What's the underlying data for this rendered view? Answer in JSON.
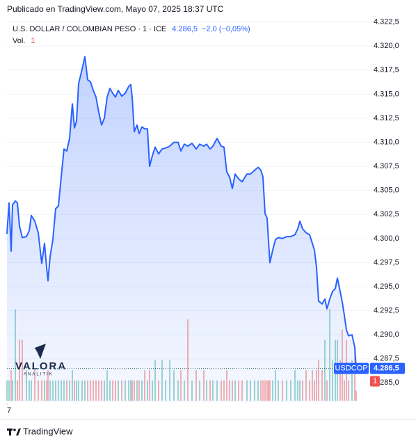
{
  "header": "Publicado en TradingView.com, Mayo 07, 2025 18:37 UTC",
  "footer": "TradingView",
  "watermark": {
    "title": "VALORA",
    "subtitle": "ANALITIK"
  },
  "chart_data": {
    "type": "area",
    "title": "U.S. DOLLAR / COLOMBIAN PESO · 1 · ICE",
    "last_label": "4.286,5",
    "change_label": "−2,0 (−0,05%)",
    "grid": true,
    "x": [
      0,
      3,
      6,
      8,
      12,
      15,
      18,
      22,
      28,
      32,
      35,
      40,
      45,
      50,
      54,
      57,
      59,
      62,
      66,
      70,
      74,
      78,
      82,
      86,
      90,
      94,
      97,
      100,
      103,
      108,
      112,
      116,
      120,
      124,
      128,
      132,
      136,
      140,
      144,
      148,
      152,
      156,
      160,
      165,
      170,
      175,
      178,
      180,
      183,
      187,
      190,
      194,
      198,
      202,
      205,
      209,
      213,
      218,
      223,
      228,
      234,
      240,
      246,
      250,
      255,
      260,
      266,
      272,
      277,
      283,
      287,
      292,
      296,
      302,
      308,
      312,
      316,
      320,
      324,
      328,
      333,
      338,
      345,
      350,
      356,
      361,
      365,
      368,
      371,
      374,
      376,
      378,
      382,
      386,
      390,
      396,
      402,
      408,
      414,
      418,
      421,
      425,
      430,
      435,
      439,
      442,
      445,
      448,
      453,
      457,
      460,
      464,
      468,
      472,
      475,
      479,
      482,
      485,
      488,
      491,
      496,
      500,
      502
    ],
    "xlim": [
      0,
      520
    ],
    "xticks": [
      {
        "value": 0,
        "label": "7"
      }
    ],
    "ylim": [
      4283.0,
      4323.2
    ],
    "yticks": [
      {
        "value": 4285.0,
        "label": "4.285,0"
      },
      {
        "value": 4287.5,
        "label": "4.287,5"
      },
      {
        "value": 4290.0,
        "label": "4.290,0"
      },
      {
        "value": 4292.5,
        "label": "4.292,5"
      },
      {
        "value": 4295.0,
        "label": "4.295,0"
      },
      {
        "value": 4297.5,
        "label": "4.297,5"
      },
      {
        "value": 4300.0,
        "label": "4.300,0"
      },
      {
        "value": 4302.5,
        "label": "4.302,5"
      },
      {
        "value": 4305.0,
        "label": "4.305,0"
      },
      {
        "value": 4307.5,
        "label": "4.307,5"
      },
      {
        "value": 4310.0,
        "label": "4.310,0"
      },
      {
        "value": 4312.5,
        "label": "4.312,5"
      },
      {
        "value": 4315.0,
        "label": "4.315,0"
      },
      {
        "value": 4317.5,
        "label": "4.317,5"
      },
      {
        "value": 4320.0,
        "label": "4.320,0"
      },
      {
        "value": 4322.5,
        "label": "4.322,5"
      }
    ],
    "y2lim": [
      0,
      10
    ],
    "series": [
      {
        "name": "USDCOP",
        "color": "#2962ff",
        "values": [
          4300.5,
          4303.7,
          4298.7,
          4303.5,
          4303.9,
          4303.7,
          4301.3,
          4300.1,
          4300.2,
          4300.8,
          4302.4,
          4301.8,
          4300.6,
          4297.4,
          4299.5,
          4297.0,
          4295.6,
          4298.1,
          4299.9,
          4303.1,
          4303.4,
          4306.4,
          4309.3,
          4309.1,
          4310.4,
          4314.0,
          4311.5,
          4312.2,
          4316.1,
          4317.6,
          4318.9,
          4316.5,
          4316.3,
          4315.4,
          4314.7,
          4313.1,
          4311.8,
          4312.5,
          4314.7,
          4315.6,
          4315.1,
          4314.7,
          4315.4,
          4314.8,
          4315.1,
          4315.8,
          4316.0,
          4314.7,
          4311.1,
          4311.8,
          4310.9,
          4311.6,
          4311.4,
          4311.4,
          4307.5,
          4308.6,
          4309.5,
          4308.8,
          4309.3,
          4309.4,
          4309.6,
          4310.0,
          4310.0,
          4309.1,
          4309.8,
          4309.6,
          4309.9,
          4309.3,
          4309.8,
          4309.6,
          4309.8,
          4309.3,
          4309.6,
          4310.4,
          4309.6,
          4309.5,
          4306.9,
          4306.4,
          4305.2,
          4306.7,
          4306.2,
          4305.9,
          4306.7,
          4306.7,
          4307.1,
          4307.4,
          4307.1,
          4306.4,
          4302.6,
          4302.1,
          4299.7,
          4297.5,
          4298.8,
          4299.9,
          4300.1,
          4300.0,
          4300.2,
          4300.2,
          4300.4,
          4301.0,
          4301.8,
          4301.0,
          4300.6,
          4300.4,
          4299.5,
          4298.8,
          4297.0,
          4293.5,
          4293.2,
          4293.7,
          4292.7,
          4293.7,
          4294.5,
          4294.8,
          4295.9,
          4294.5,
          4293.4,
          4292.0,
          4290.5,
          4289.9,
          4290.0,
          4288.7,
          4286.5
        ]
      },
      {
        "name": "Vol.",
        "axis": "y2",
        "color": "#26a69a",
        "down_color": "#ef5350",
        "values": [
          2,
          2,
          3,
          2,
          9,
          2,
          6,
          6,
          3,
          2,
          2,
          3,
          2,
          2,
          2,
          2,
          3,
          2,
          2,
          2,
          2,
          2,
          2,
          2,
          2,
          3,
          2,
          2,
          2,
          2,
          2,
          2,
          2,
          2,
          2,
          2,
          2,
          2,
          3,
          2,
          2,
          2,
          2,
          2,
          2,
          2,
          2,
          2,
          2,
          2,
          2,
          2,
          3,
          2,
          3,
          2,
          4,
          2,
          4,
          2,
          4,
          3,
          2,
          3,
          2,
          8,
          2,
          3,
          2,
          3,
          2,
          2,
          2,
          2,
          2,
          2,
          3,
          2,
          2,
          2,
          2,
          2,
          2,
          2,
          2,
          2,
          2,
          2,
          2,
          2,
          2,
          2,
          2,
          3,
          2,
          2,
          2,
          2,
          3,
          2,
          2,
          2,
          3,
          2,
          3,
          2,
          3,
          4,
          3,
          6,
          2,
          9,
          4,
          6,
          6,
          4,
          7,
          2,
          6,
          2,
          4,
          5,
          1
        ]
      }
    ]
  }
}
